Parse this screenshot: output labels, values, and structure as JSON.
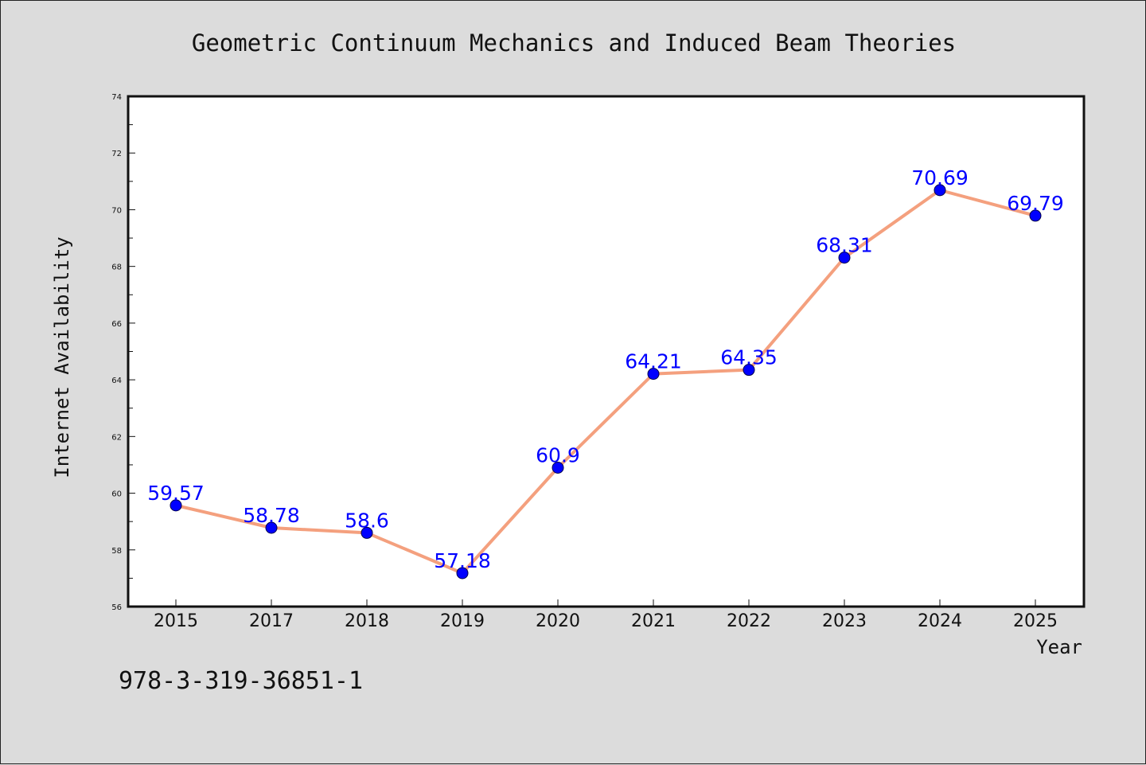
{
  "footer_text": "978-3-319-36851-1",
  "chart_data": {
    "type": "line",
    "title": "Geometric Continuum Mechanics and Induced Beam Theories",
    "xlabel": "Year",
    "ylabel": "Internet Availability",
    "categories": [
      "2015",
      "2017",
      "2018",
      "2019",
      "2020",
      "2021",
      "2022",
      "2023",
      "2024",
      "2025"
    ],
    "values": [
      59.57,
      58.78,
      58.6,
      57.18,
      60.9,
      64.21,
      64.35,
      68.31,
      70.69,
      69.79
    ],
    "data_labels": [
      "59.57",
      "58.78",
      "58.6",
      "57.18",
      "60.9",
      "64.21",
      "64.35",
      "68.31",
      "70.69",
      "69.79"
    ],
    "ylim": [
      56,
      74
    ],
    "yticks": [
      56,
      58,
      60,
      62,
      64,
      66,
      68,
      70,
      72,
      74
    ],
    "grid": false,
    "legend": "none",
    "colors": {
      "line": "#f4a07e",
      "marker": "#0000ff",
      "data_label": "#0000ff",
      "plot_background": "#ffffff",
      "page_background": "#dcdcdc"
    }
  }
}
